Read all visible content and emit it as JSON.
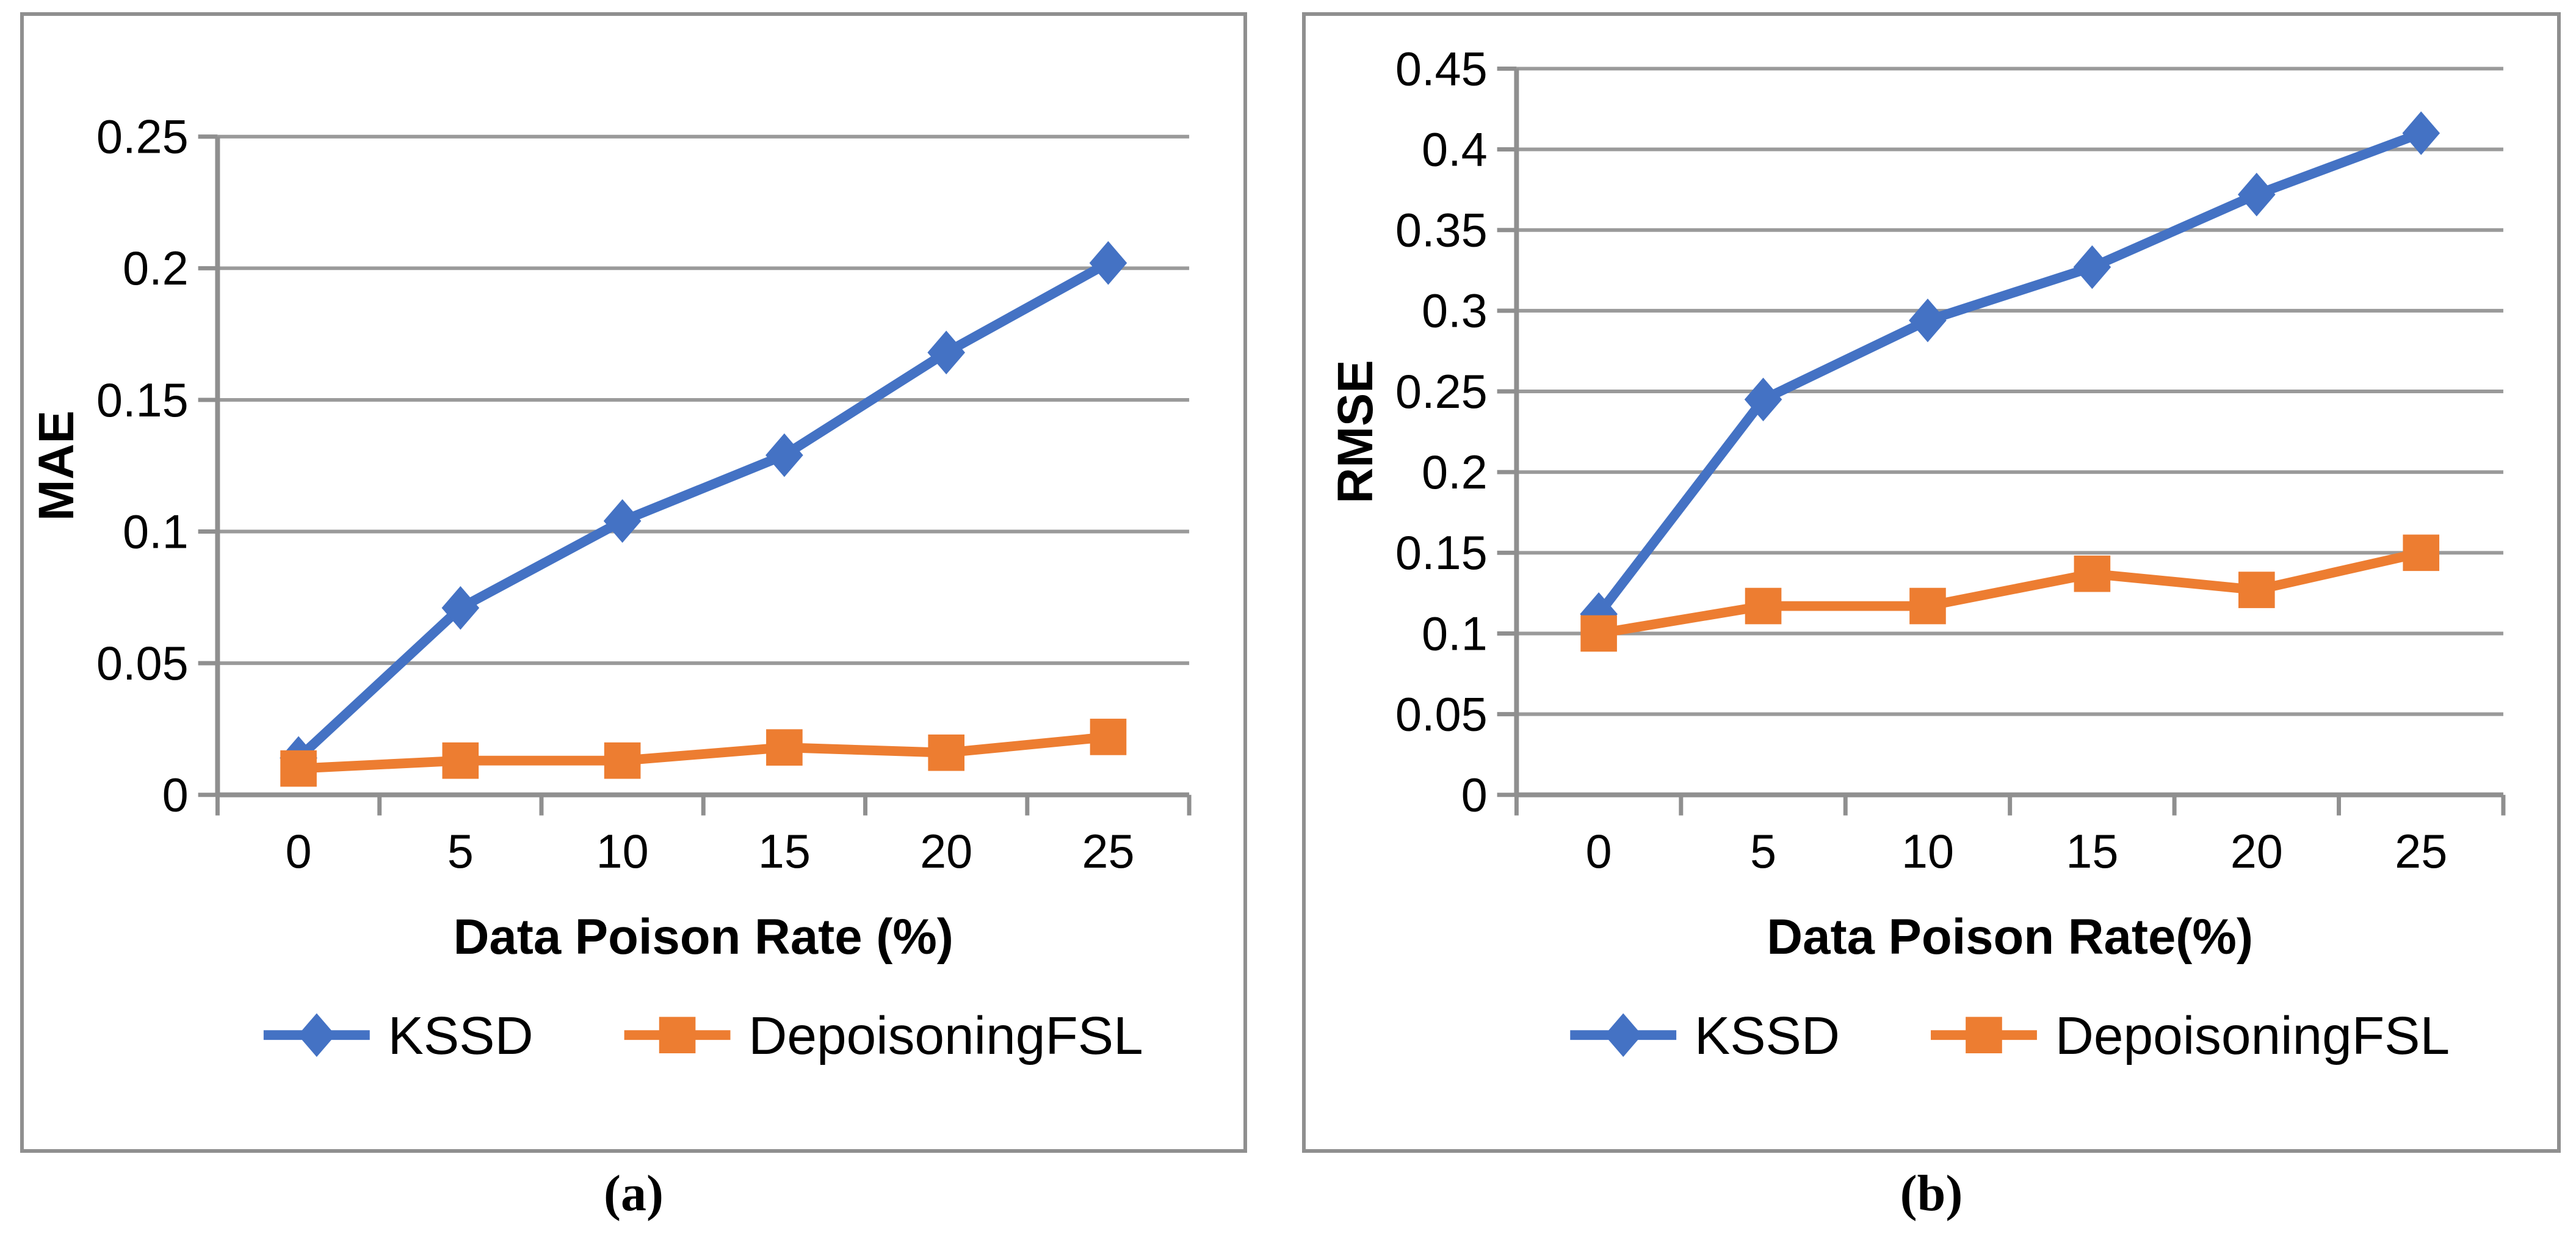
{
  "figure": {
    "background": "#ffffff",
    "panel_border_color": "#8f8f8f",
    "grid_color": "#9a9a9a",
    "axis_color": "#8f8f8f",
    "text_color": "#000000"
  },
  "captions": {
    "a": "(a)",
    "b": "(b)"
  },
  "chart_data": [
    {
      "type": "line",
      "panel": "a",
      "title": "",
      "xlabel": "Data Poison Rate (%)",
      "ylabel": "MAE",
      "categories": [
        "0",
        "5",
        "10",
        "15",
        "20",
        "25"
      ],
      "ylim": [
        0,
        0.25
      ],
      "ytick_step": 0.05,
      "ytick_labels": [
        "0",
        "0.05",
        "0.1",
        "0.15",
        "0.2",
        "0.25"
      ],
      "grid": true,
      "legend_position": "bottom",
      "series": [
        {
          "name": "KSSD",
          "marker": "diamond",
          "color": "#4472C4",
          "values": [
            0.014,
            0.071,
            0.104,
            0.129,
            0.168,
            0.202
          ]
        },
        {
          "name": "DepoisoningFSL",
          "marker": "square",
          "color": "#ED7D31",
          "values": [
            0.01,
            0.013,
            0.013,
            0.018,
            0.016,
            0.022
          ]
        }
      ]
    },
    {
      "type": "line",
      "panel": "b",
      "title": "",
      "xlabel": "Data Poison Rate(%)",
      "ylabel": "RMSE",
      "categories": [
        "0",
        "5",
        "10",
        "15",
        "20",
        "25"
      ],
      "ylim": [
        0,
        0.45
      ],
      "ytick_step": 0.05,
      "ytick_labels": [
        "0",
        "0.05",
        "0.1",
        "0.15",
        "0.2",
        "0.25",
        "0.3",
        "0.35",
        "0.4",
        "0.45"
      ],
      "grid": true,
      "legend_position": "bottom",
      "series": [
        {
          "name": "KSSD",
          "marker": "diamond",
          "color": "#4472C4",
          "values": [
            0.112,
            0.245,
            0.294,
            0.327,
            0.372,
            0.41
          ]
        },
        {
          "name": "DepoisoningFSL",
          "marker": "square",
          "color": "#ED7D31",
          "values": [
            0.1,
            0.117,
            0.117,
            0.137,
            0.127,
            0.15
          ]
        }
      ]
    }
  ]
}
